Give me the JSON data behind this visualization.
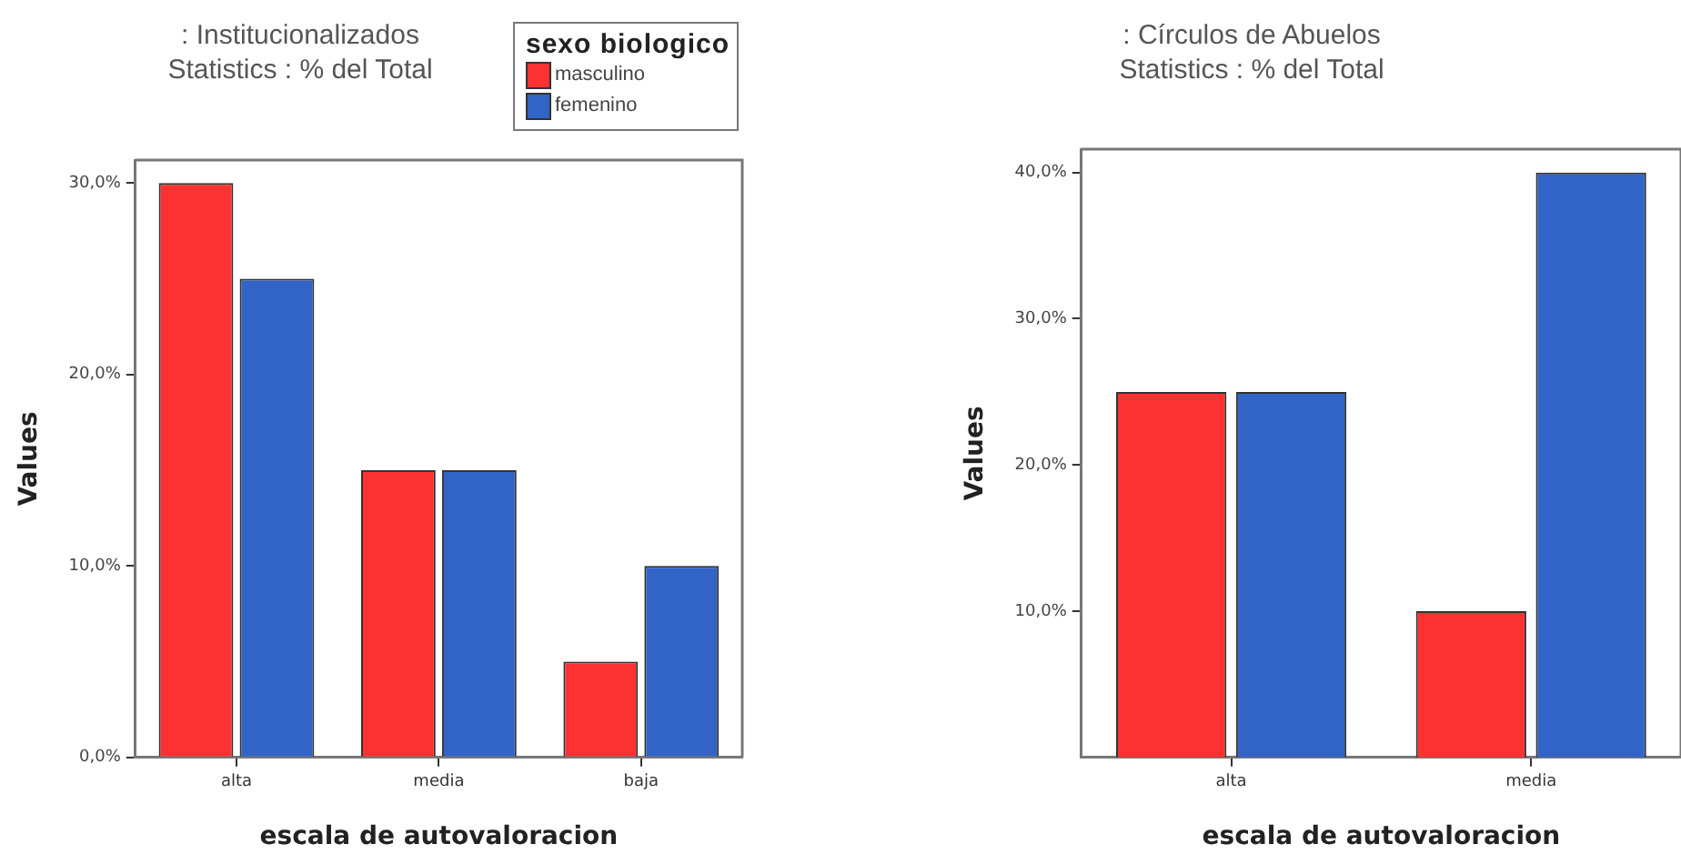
{
  "chart_data": [
    {
      "type": "bar",
      "title": ": Institucionalizados",
      "subtitle": "Statistics : % del Total",
      "legend_title": "sexo biologico",
      "legend": "top right",
      "xlabel": "escala de autovaloracion",
      "ylabel": "Values",
      "categories": [
        "alta",
        "media",
        "baja"
      ],
      "series": [
        {
          "name": "masculino",
          "color": "#fc3232",
          "values": [
            30,
            15,
            5
          ]
        },
        {
          "name": "femenino",
          "color": "#3264c8",
          "values": [
            25,
            15,
            10
          ]
        }
      ],
      "ylim": [
        0,
        31.2
      ],
      "yticks": [
        {
          "value": 0,
          "label": "0,0%"
        },
        {
          "value": 10,
          "label": "10,0%"
        },
        {
          "value": 20,
          "label": "20,0%"
        },
        {
          "value": 30,
          "label": "30,0%"
        }
      ]
    },
    {
      "type": "bar",
      "title": ": Círculos de Abuelos",
      "subtitle": "Statistics : % del Total",
      "xlabel": "escala de autovaloracion",
      "ylabel": "Values",
      "categories": [
        "alta",
        "media"
      ],
      "series": [
        {
          "color": "#fc3232",
          "values": [
            25,
            10
          ]
        },
        {
          "color": "#3264c8",
          "values": [
            25,
            40
          ]
        }
      ],
      "ylim": [
        0,
        41.6
      ],
      "yticks": [
        {
          "value": 10,
          "label": "10,0%"
        },
        {
          "value": 20,
          "label": "20,0%"
        },
        {
          "value": 30,
          "label": "30,0%"
        },
        {
          "value": 40,
          "label": "40,0%"
        }
      ]
    }
  ]
}
